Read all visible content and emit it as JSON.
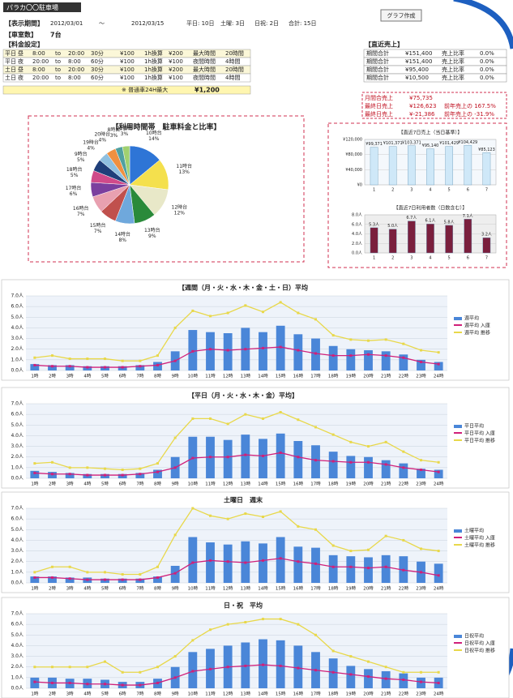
{
  "header": {
    "title": "パラカ〇〇駐車場",
    "period_label": "【表示期間】",
    "start": "2012/03/01",
    "tilde": "～",
    "end": "2012/03/15",
    "days": [
      "平日: 10日",
      "土曜: 3日",
      "日祝: 2日",
      "合計: 15日"
    ],
    "spaces_label": "【車室数】",
    "spaces": "7台",
    "button": "グラフ作成"
  },
  "fee_table": {
    "title": "【料金設定】",
    "rows": [
      [
        "平日",
        "昼",
        "8:00",
        "to",
        "20:00",
        "30分",
        "¥100",
        "1h換算",
        "¥200",
        "最大時間",
        "20時間"
      ],
      [
        "平日",
        "夜",
        "20:00",
        "to",
        "8:00",
        "60分",
        "¥100",
        "1h換算",
        "¥100",
        "夜間時間",
        "4時間"
      ],
      [
        "土日",
        "昼",
        "8:00",
        "to",
        "20:00",
        "30分",
        "¥100",
        "1h換算",
        "¥200",
        "最大時間",
        "20時間"
      ],
      [
        "土日",
        "夜",
        "20:00",
        "to",
        "8:00",
        "60分",
        "¥100",
        "1h換算",
        "¥100",
        "夜間時間",
        "4時間"
      ]
    ],
    "note": "※ 普通車24H最大",
    "note_price": "¥1,200"
  },
  "sales_table": {
    "title": "【直近売上】",
    "rows": [
      [
        "期間合計",
        "¥151,400",
        "売上比率",
        "0.0%"
      ],
      [
        "期間合計",
        "¥151,400",
        "売上比率",
        "0.0%"
      ],
      [
        "期間合計",
        "¥95,400",
        "売上比率",
        "0.0%"
      ],
      [
        "期間合計",
        "¥10,500",
        "売上比率",
        "0.0%"
      ]
    ]
  },
  "month_box": {
    "rows": [
      [
        "月間合売上",
        "¥75,735",
        ""
      ],
      [
        "最終日売上",
        "¥126,623",
        "前年売上の 167.5%"
      ],
      [
        "最終日売上",
        "¥-21,386",
        "前年売上の -31.9%"
      ]
    ]
  },
  "pie": {
    "title": "【利用時間帯　駐車料金と比率】",
    "labels": [
      "10時台",
      "11時台",
      "12時台",
      "13時台",
      "14時台",
      "15時台",
      "16時台",
      "17時台",
      "18時台",
      "9時台",
      "19時台",
      "20時台",
      "8時台",
      "21時台"
    ],
    "values": [
      14,
      13,
      12,
      9,
      8,
      7,
      7,
      6,
      5,
      5,
      4,
      4,
      3,
      3
    ],
    "value_labels": [
      "14%",
      "13%",
      "12%",
      "9%",
      "8%",
      "7%",
      "7%",
      "6%",
      "5%",
      "5%",
      "4%",
      "4%",
      "3%",
      "3%"
    ],
    "colors": [
      "#2e75d6",
      "#f4e04d",
      "#e8e8c8",
      "#2a8a3a",
      "#6fa8dc",
      "#c0504d",
      "#e8a0b0",
      "#7b3f9e",
      "#d04a8a",
      "#1f3f7a",
      "#8fc0e0",
      "#f09040",
      "#50a0a0",
      "#a0d070"
    ]
  },
  "small_charts": [
    {
      "title": "【直近7日売上（当日基準）】",
      "categories": [
        "1",
        "2",
        "3",
        "4",
        "5",
        "6",
        "7"
      ],
      "values": [
        99371,
        101371,
        103371,
        95140,
        101429,
        104429,
        85123
      ],
      "value_labels": [
        "¥99,371",
        "¥101,371",
        "¥103,371",
        "¥95,140",
        "¥101,429",
        "¥104,429",
        "¥85,123"
      ],
      "color": "#cfe8f8",
      "ylim": [
        0,
        120000
      ],
      "yticks": [
        {
          "value": 0,
          "label": "¥0"
        },
        {
          "value": 40000,
          "label": "¥40,000"
        },
        {
          "value": 80000,
          "label": "¥80,000"
        },
        {
          "value": 120000,
          "label": "¥120,000"
        }
      ]
    },
    {
      "title": "【直近7日利用者数（日数含む）】",
      "categories": [
        "1",
        "2",
        "3",
        "4",
        "5",
        "6",
        "7"
      ],
      "values": [
        5.3,
        5.0,
        6.7,
        6.1,
        5.8,
        7.1,
        3.2
      ],
      "value_labels": [
        "5.3人",
        "5.0人",
        "6.7人",
        "6.1人",
        "5.8人",
        "7.1人",
        "3.2人"
      ],
      "color": "#7a1f3d",
      "ylim": [
        0,
        8
      ],
      "yticks": [
        {
          "value": 0,
          "label": "0.0人"
        },
        {
          "value": 2,
          "label": "2.0人"
        },
        {
          "value": 4,
          "label": "4.0人"
        },
        {
          "value": 6,
          "label": "6.0人"
        },
        {
          "value": 8,
          "label": "8.0人"
        }
      ]
    }
  ],
  "hours": [
    "1時",
    "2時",
    "3時",
    "4時",
    "5時",
    "6時",
    "7時",
    "8時",
    "9時",
    "10時",
    "11時",
    "12時",
    "13時",
    "14時",
    "15時",
    "16時",
    "17時",
    "18時",
    "19時",
    "20時",
    "21時",
    "22時",
    "23時",
    "24時"
  ],
  "hour_charts": [
    {
      "title": "【週間（月・火・水・木・金・土・日）平均",
      "ylim": [
        0,
        7
      ],
      "yticks": [
        {
          "value": 0,
          "label": "0.0人"
        },
        {
          "value": 1,
          "label": "1.0人"
        },
        {
          "value": 2,
          "label": "2.0人"
        },
        {
          "value": 3,
          "label": "3.0人"
        },
        {
          "value": 4,
          "label": "4.0人"
        },
        {
          "value": 5,
          "label": "5.0人"
        },
        {
          "value": 6,
          "label": "6.0人"
        },
        {
          "value": 7,
          "label": "7.0人"
        }
      ],
      "series": [
        {
          "name": "週平均",
          "type": "bar",
          "color": "#4a86d8",
          "values": [
            0.6,
            0.5,
            0.5,
            0.4,
            0.4,
            0.4,
            0.5,
            0.8,
            1.8,
            3.8,
            3.6,
            3.5,
            4.0,
            3.6,
            4.2,
            3.4,
            3.0,
            2.3,
            2.0,
            1.9,
            1.8,
            1.5,
            1.0,
            0.8
          ]
        },
        {
          "name": "週平均 入庫",
          "type": "line",
          "color": "#d0207a",
          "values": [
            0.5,
            0.4,
            0.4,
            0.3,
            0.3,
            0.3,
            0.4,
            0.5,
            0.9,
            1.8,
            2.0,
            1.9,
            2.0,
            2.1,
            2.2,
            1.9,
            1.6,
            1.4,
            1.4,
            1.5,
            1.4,
            1.2,
            0.8,
            0.6
          ]
        },
        {
          "name": "週平均 推移",
          "type": "line",
          "color": "#e8d84a",
          "values": [
            1.2,
            1.4,
            1.1,
            1.1,
            1.1,
            0.9,
            0.9,
            1.4,
            4.0,
            5.6,
            5.1,
            5.4,
            6.1,
            5.5,
            6.4,
            5.4,
            4.8,
            3.3,
            2.9,
            2.8,
            2.9,
            2.5,
            1.9,
            1.7
          ]
        }
      ]
    },
    {
      "title": "【平日（月・火・水・木・金）平均】",
      "ylim": [
        0,
        7
      ],
      "yticks": [
        {
          "value": 0,
          "label": "0.0人"
        },
        {
          "value": 1,
          "label": "1.0人"
        },
        {
          "value": 2,
          "label": "2.0人"
        },
        {
          "value": 3,
          "label": "3.0人"
        },
        {
          "value": 4,
          "label": "4.0人"
        },
        {
          "value": 5,
          "label": "5.0人"
        },
        {
          "value": 6,
          "label": "6.0人"
        },
        {
          "value": 7,
          "label": "7.0人"
        }
      ],
      "series": [
        {
          "name": "平日平均",
          "type": "bar",
          "color": "#4a86d8",
          "values": [
            0.7,
            0.6,
            0.5,
            0.4,
            0.4,
            0.4,
            0.5,
            0.8,
            2.0,
            3.9,
            3.9,
            3.6,
            4.1,
            3.7,
            4.2,
            3.5,
            3.1,
            2.5,
            2.1,
            2.0,
            1.7,
            1.4,
            0.9,
            0.8
          ]
        },
        {
          "name": "平日平均 入庫",
          "type": "line",
          "color": "#d0207a",
          "values": [
            0.5,
            0.4,
            0.4,
            0.3,
            0.3,
            0.3,
            0.4,
            0.6,
            1.0,
            1.9,
            2.0,
            2.0,
            2.2,
            2.1,
            2.4,
            2.0,
            1.7,
            1.6,
            1.5,
            1.5,
            1.3,
            1.0,
            0.8,
            0.6
          ]
        },
        {
          "name": "平日平均 推移",
          "type": "line",
          "color": "#e8d84a",
          "values": [
            1.4,
            1.5,
            1.0,
            1.0,
            0.9,
            0.8,
            0.9,
            1.4,
            3.8,
            5.6,
            5.6,
            5.1,
            6.0,
            5.6,
            6.2,
            5.5,
            4.8,
            4.1,
            3.4,
            3.0,
            3.4,
            2.5,
            1.7,
            1.5
          ]
        }
      ]
    },
    {
      "title": "土曜日　週末",
      "ylim": [
        0,
        7
      ],
      "yticks": [
        {
          "value": 0,
          "label": "0.0人"
        },
        {
          "value": 1,
          "label": "1.0人"
        },
        {
          "value": 2,
          "label": "2.0人"
        },
        {
          "value": 3,
          "label": "3.0人"
        },
        {
          "value": 4,
          "label": "4.0人"
        },
        {
          "value": 5,
          "label": "5.0人"
        },
        {
          "value": 6,
          "label": "6.0人"
        },
        {
          "value": 7,
          "label": "7.0人"
        }
      ],
      "series": [
        {
          "name": "土曜平均",
          "type": "bar",
          "color": "#4a86d8",
          "values": [
            0.6,
            0.6,
            0.5,
            0.5,
            0.4,
            0.4,
            0.4,
            0.6,
            1.6,
            4.3,
            3.8,
            3.6,
            3.9,
            3.7,
            4.3,
            3.4,
            3.3,
            2.6,
            2.5,
            2.4,
            2.6,
            2.5,
            2.0,
            1.8
          ]
        },
        {
          "name": "土曜平均 入庫",
          "type": "line",
          "color": "#d0207a",
          "values": [
            0.5,
            0.5,
            0.4,
            0.3,
            0.3,
            0.3,
            0.3,
            0.5,
            0.9,
            1.9,
            2.1,
            2.0,
            1.9,
            2.1,
            2.3,
            2.0,
            1.8,
            1.5,
            1.5,
            1.4,
            1.5,
            1.2,
            1.0,
            0.7
          ]
        },
        {
          "name": "土曜平均 推移",
          "type": "line",
          "color": "#e8d84a",
          "values": [
            1.0,
            1.5,
            1.5,
            1.0,
            1.0,
            0.8,
            0.8,
            1.5,
            4.5,
            7.0,
            6.3,
            6.0,
            6.5,
            6.2,
            6.7,
            5.3,
            5.0,
            3.5,
            3.0,
            3.1,
            4.4,
            4.0,
            3.2,
            3.0
          ]
        }
      ]
    },
    {
      "title": "日・祝　平均",
      "ylim": [
        0,
        7
      ],
      "yticks": [
        {
          "value": 0,
          "label": "0.0人"
        },
        {
          "value": 1,
          "label": "1.0人"
        },
        {
          "value": 2,
          "label": "2.0人"
        },
        {
          "value": 3,
          "label": "3.0人"
        },
        {
          "value": 4,
          "label": "4.0人"
        },
        {
          "value": 5,
          "label": "5.0人"
        },
        {
          "value": 6,
          "label": "6.0人"
        },
        {
          "value": 7,
          "label": "7.0人"
        }
      ],
      "series": [
        {
          "name": "日祝平均",
          "type": "bar",
          "color": "#4a86d8",
          "values": [
            1.0,
            1.0,
            0.9,
            0.9,
            0.8,
            0.6,
            0.6,
            0.9,
            2.0,
            3.4,
            3.7,
            4.0,
            4.3,
            4.6,
            4.5,
            4.0,
            3.4,
            2.8,
            2.1,
            1.8,
            1.6,
            1.4,
            1.0,
            1.0
          ]
        },
        {
          "name": "日祝平均 入庫",
          "type": "line",
          "color": "#d0207a",
          "values": [
            0.6,
            0.5,
            0.5,
            0.4,
            0.4,
            0.3,
            0.3,
            0.5,
            1.0,
            1.6,
            1.8,
            2.0,
            2.1,
            2.2,
            2.1,
            1.9,
            1.7,
            1.5,
            1.3,
            1.1,
            0.9,
            0.8,
            0.6,
            0.5
          ]
        },
        {
          "name": "日祝平均 推移",
          "type": "line",
          "color": "#e8d84a",
          "values": [
            2.0,
            2.0,
            2.0,
            2.0,
            2.5,
            1.5,
            1.5,
            2.0,
            3.0,
            4.5,
            5.5,
            6.0,
            6.2,
            6.5,
            6.5,
            6.0,
            5.0,
            3.5,
            3.0,
            2.5,
            2.0,
            1.5,
            1.5,
            1.5
          ]
        }
      ]
    }
  ]
}
